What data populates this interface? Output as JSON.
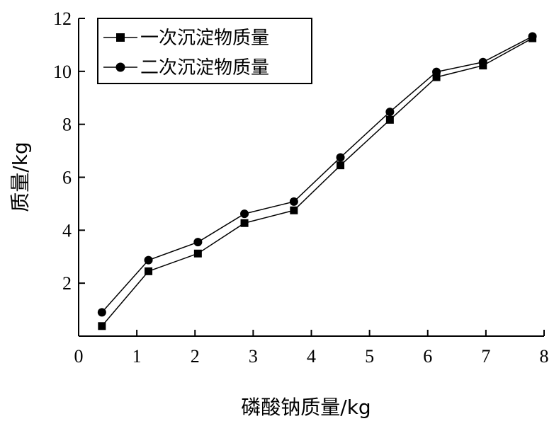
{
  "chart_data": {
    "type": "line",
    "xlabel": "磷酸钠质量/kg",
    "ylabel": "质量/kg",
    "xlim": [
      0,
      8
    ],
    "ylim": [
      0,
      12
    ],
    "x_ticks": [
      0,
      1,
      2,
      3,
      4,
      5,
      6,
      7,
      8
    ],
    "y_ticks": [
      2,
      4,
      6,
      8,
      10,
      12
    ],
    "grid": false,
    "legend_position": "top-left",
    "series": [
      {
        "name": "一次沉淀物质量",
        "marker": "square",
        "color": "#000000",
        "x": [
          0.4,
          1.2,
          2.05,
          2.85,
          3.7,
          4.5,
          5.35,
          6.15,
          6.95,
          7.8
        ],
        "y": [
          0.38,
          2.45,
          3.12,
          4.27,
          4.75,
          6.45,
          8.17,
          9.78,
          10.22,
          11.25
        ]
      },
      {
        "name": "二次沉淀物质量",
        "marker": "circle",
        "color": "#000000",
        "x": [
          0.4,
          1.2,
          2.05,
          2.85,
          3.7,
          4.5,
          5.35,
          6.15,
          6.95,
          7.8
        ],
        "y": [
          0.9,
          2.87,
          3.55,
          4.62,
          5.08,
          6.75,
          8.47,
          9.98,
          10.35,
          11.32
        ]
      }
    ]
  }
}
